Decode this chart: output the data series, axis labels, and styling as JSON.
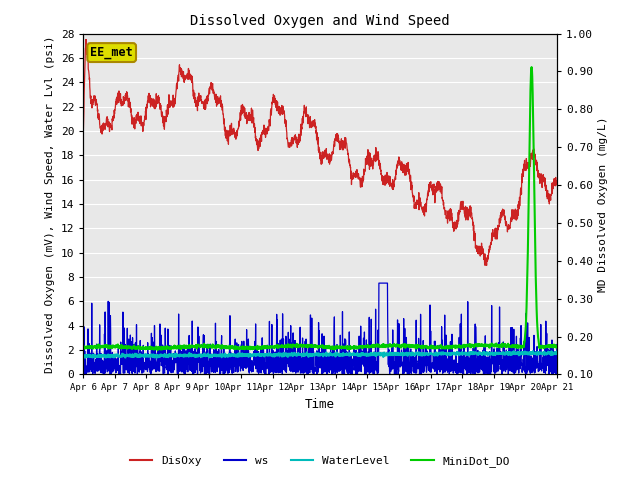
{
  "title": "Dissolved Oxygen and Wind Speed",
  "xlabel": "Time",
  "ylabel_left": "Dissolved Oxygen (mV), Wind Speed, Water Lvl (psi)",
  "ylabel_right": "MD Dissolved Oxygen (mg/L)",
  "annotation_text": "EE_met",
  "annotation_facecolor": "#dddd00",
  "annotation_edgecolor": "#aa8800",
  "xlim": [
    0,
    15
  ],
  "ylim_left": [
    0,
    28
  ],
  "ylim_right": [
    0.1,
    1.0
  ],
  "yticks_left": [
    0,
    2,
    4,
    6,
    8,
    10,
    12,
    14,
    16,
    18,
    20,
    22,
    24,
    26,
    28
  ],
  "yticks_right": [
    0.1,
    0.2,
    0.3,
    0.4,
    0.5,
    0.6,
    0.7,
    0.8,
    0.9,
    1.0
  ],
  "ytick_right_labels": [
    "0.10",
    "0.20",
    "0.30",
    "0.40",
    "0.50",
    "0.60",
    "0.70",
    "0.80",
    "0.90",
    "1.00"
  ],
  "xtick_positions": [
    0,
    1,
    2,
    3,
    4,
    5,
    6,
    7,
    8,
    9,
    10,
    11,
    12,
    13,
    14,
    15
  ],
  "xtick_labels": [
    "Apr 6",
    "Apr 7",
    "Apr 8",
    "Apr 9",
    "Apr 10",
    "Apr 11",
    "Apr 12",
    "Apr 13",
    "Apr 14",
    "Apr 15",
    "Apr 16",
    "Apr 17",
    "Apr 18",
    "Apr 19",
    "Apr 20",
    "Apr 21"
  ],
  "colors": {
    "DisOxy": "#cc2222",
    "ws": "#0000cc",
    "WaterLevel": "#00bbbb",
    "MiniDot_DO": "#00cc00",
    "background": "#e8e8e8",
    "grid": "white"
  },
  "linewidths": {
    "DisOxy": 0.9,
    "ws": 0.9,
    "WaterLevel": 1.5,
    "MiniDot_DO": 1.5
  },
  "font_size_title": 10,
  "font_size_ticks": 8,
  "font_size_label": 8,
  "font_size_legend": 8
}
